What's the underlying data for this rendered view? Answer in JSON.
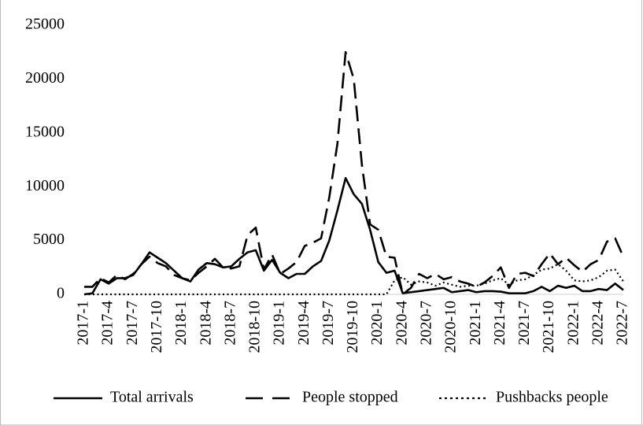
{
  "chart_data": {
    "type": "line",
    "categories": [
      "2017-1",
      null,
      null,
      "2017-4",
      null,
      null,
      "2017-7",
      null,
      null,
      "2017-10",
      null,
      null,
      "2018-1",
      null,
      null,
      "2018-4",
      null,
      null,
      "2018-7",
      null,
      null,
      "2018-10",
      null,
      null,
      "2019-1",
      null,
      null,
      "2019-4",
      null,
      null,
      "2019-7",
      null,
      null,
      "2019-10",
      null,
      null,
      "2020-1",
      null,
      null,
      "2020-4",
      null,
      null,
      "2020-7",
      null,
      null,
      "2020-10",
      null,
      null,
      "2021-1",
      null,
      null,
      "2021-4",
      null,
      null,
      "2021-7",
      null,
      null,
      "2021-10",
      null,
      null,
      "2022-1",
      null,
      null,
      "2022-4",
      null,
      null,
      "2022-7"
    ],
    "series": [
      {
        "name": "Total arrivals",
        "color": "#000000",
        "dash": "solid",
        "values": [
          0,
          100,
          1400,
          1000,
          1500,
          1500,
          1800,
          2800,
          3900,
          3400,
          2900,
          2200,
          1500,
          1200,
          2300,
          2900,
          2800,
          2500,
          2600,
          3300,
          3900,
          4100,
          2200,
          3200,
          2000,
          1500,
          1900,
          1900,
          2600,
          3100,
          5000,
          7800,
          10800,
          9300,
          8400,
          6000,
          3000,
          2000,
          2200,
          100,
          200,
          300,
          400,
          500,
          600,
          200,
          300,
          400,
          200,
          300,
          300,
          250,
          100,
          100,
          100,
          300,
          700,
          300,
          800,
          600,
          800,
          300,
          300,
          500,
          400,
          1000,
          400
        ]
      },
      {
        "name": "People stopped",
        "color": "#000000",
        "dash": "dashed",
        "values": [
          700,
          700,
          1500,
          1100,
          1800,
          1400,
          1900,
          2800,
          3500,
          2900,
          2600,
          1800,
          1500,
          1300,
          2000,
          2600,
          3300,
          2500,
          2400,
          2600,
          5500,
          6200,
          2300,
          3700,
          1900,
          2400,
          3000,
          4500,
          4800,
          5200,
          9000,
          14000,
          22500,
          20000,
          12000,
          6500,
          6000,
          3500,
          3400,
          0,
          600,
          1900,
          1500,
          1900,
          1400,
          1600,
          1200,
          1000,
          700,
          1100,
          1700,
          2500,
          600,
          1900,
          2000,
          1700,
          2800,
          3800,
          2800,
          3400,
          2700,
          2100,
          2800,
          3200,
          4900,
          5200,
          3500
        ]
      },
      {
        "name": "Pushbacks people",
        "color": "#000000",
        "dash": "dotted",
        "values": [
          0,
          0,
          0,
          0,
          0,
          0,
          0,
          0,
          0,
          0,
          0,
          0,
          0,
          0,
          0,
          0,
          0,
          0,
          0,
          0,
          0,
          0,
          0,
          0,
          0,
          0,
          0,
          0,
          0,
          0,
          0,
          0,
          0,
          0,
          0,
          0,
          0,
          0,
          1300,
          1600,
          900,
          1200,
          1100,
          800,
          1100,
          900,
          700,
          800,
          800,
          1000,
          1300,
          1500,
          900,
          1300,
          1400,
          1800,
          2300,
          2400,
          2800,
          2200,
          1300,
          1200,
          1300,
          1600,
          2200,
          2300,
          1200
        ]
      }
    ],
    "ylim": [
      0,
      25000
    ],
    "yticks": [
      0,
      5000,
      10000,
      15000,
      20000,
      25000
    ],
    "grid": false,
    "legend": "bottom"
  }
}
